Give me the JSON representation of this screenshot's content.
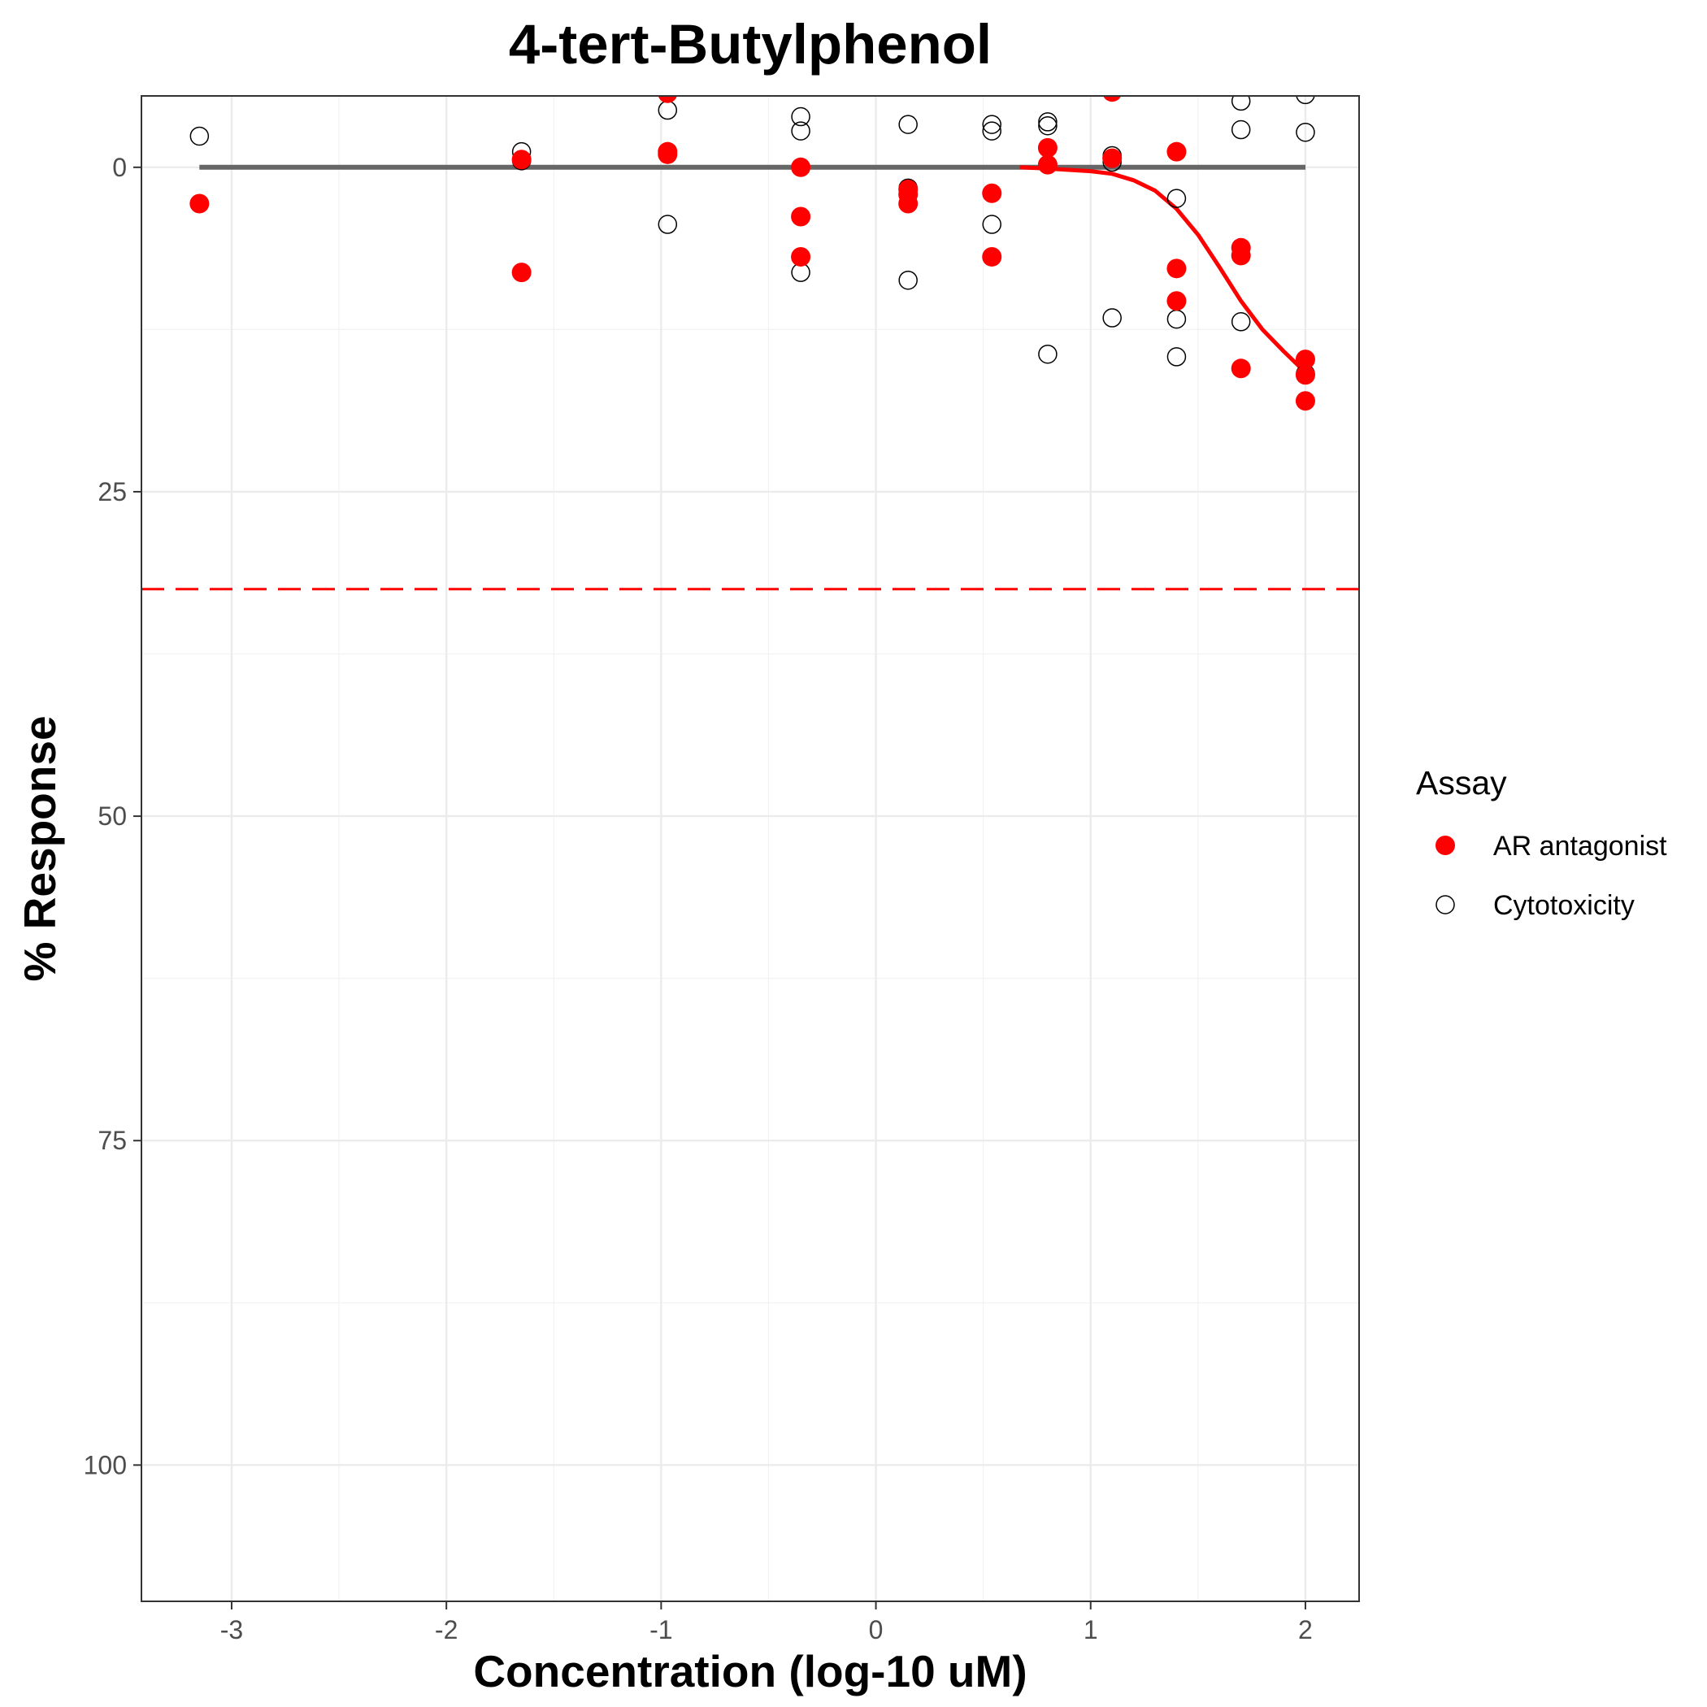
{
  "chart_data": {
    "type": "scatter",
    "title": "4-tert-Butylphenol",
    "xlabel": "Concentration (log-10 uM)",
    "ylabel": "% Response",
    "xlim": [
      -3.42,
      2.25
    ],
    "ylim": [
      110.5,
      -5.5
    ],
    "y_reversed": true,
    "x_ticks": [
      -3,
      -2,
      -1,
      0,
      1,
      2
    ],
    "x_tick_labels": [
      "-3",
      "-2",
      "-1",
      "0",
      "1",
      "2"
    ],
    "y_ticks": [
      0,
      25,
      50,
      75,
      100
    ],
    "y_tick_labels": [
      "0",
      "25",
      "50",
      "75",
      "100"
    ],
    "grid": true,
    "legend": {
      "title": "Assay",
      "position": "right"
    },
    "series": [
      {
        "name": "AR antagonist",
        "marker": "filled-circle",
        "color": "#ff0000",
        "points": [
          {
            "x": -3.15,
            "y": 2.8
          },
          {
            "x": -1.65,
            "y": 8.1
          },
          {
            "x": -1.65,
            "y": -0.6
          },
          {
            "x": -0.97,
            "y": -5.7
          },
          {
            "x": -0.97,
            "y": -1.2
          },
          {
            "x": -0.97,
            "y": -1.0
          },
          {
            "x": -0.35,
            "y": 0.0
          },
          {
            "x": -0.35,
            "y": 3.8
          },
          {
            "x": -0.35,
            "y": 6.9
          },
          {
            "x": 0.15,
            "y": 1.7
          },
          {
            "x": 0.15,
            "y": 2.1
          },
          {
            "x": 0.15,
            "y": 2.8
          },
          {
            "x": 0.54,
            "y": 2.0
          },
          {
            "x": 0.54,
            "y": 6.9
          },
          {
            "x": 0.8,
            "y": -1.5
          },
          {
            "x": 0.8,
            "y": -0.2
          },
          {
            "x": 1.1,
            "y": -5.8
          },
          {
            "x": 1.1,
            "y": -0.7
          },
          {
            "x": 1.4,
            "y": -1.2
          },
          {
            "x": 1.4,
            "y": 7.8
          },
          {
            "x": 1.4,
            "y": 10.3
          },
          {
            "x": 1.7,
            "y": 6.2
          },
          {
            "x": 1.7,
            "y": 6.8
          },
          {
            "x": 1.7,
            "y": 15.5
          },
          {
            "x": 2.0,
            "y": 14.8
          },
          {
            "x": 2.0,
            "y": 16.0
          },
          {
            "x": 2.0,
            "y": 18.0
          }
        ]
      },
      {
        "name": "Cytotoxicity",
        "marker": "open-circle",
        "color": "#000000",
        "points": [
          {
            "x": -3.15,
            "y": -2.4
          },
          {
            "x": -1.65,
            "y": -1.2
          },
          {
            "x": -1.65,
            "y": -0.5
          },
          {
            "x": -0.97,
            "y": -4.4
          },
          {
            "x": -0.97,
            "y": 4.4
          },
          {
            "x": -0.35,
            "y": -3.9
          },
          {
            "x": -0.35,
            "y": -2.8
          },
          {
            "x": -0.35,
            "y": 8.1
          },
          {
            "x": 0.15,
            "y": -3.3
          },
          {
            "x": 0.15,
            "y": 1.6
          },
          {
            "x": 0.15,
            "y": 8.7
          },
          {
            "x": 0.54,
            "y": -3.3
          },
          {
            "x": 0.54,
            "y": -2.8
          },
          {
            "x": 0.54,
            "y": 4.4
          },
          {
            "x": 0.8,
            "y": -3.5
          },
          {
            "x": 0.8,
            "y": -3.2
          },
          {
            "x": 0.8,
            "y": 14.4
          },
          {
            "x": 1.1,
            "y": -0.9
          },
          {
            "x": 1.1,
            "y": -0.4
          },
          {
            "x": 1.1,
            "y": 11.6
          },
          {
            "x": 1.4,
            "y": 2.4
          },
          {
            "x": 1.4,
            "y": 11.7
          },
          {
            "x": 1.4,
            "y": 14.6
          },
          {
            "x": 1.7,
            "y": -5.1
          },
          {
            "x": 1.7,
            "y": -2.9
          },
          {
            "x": 1.7,
            "y": 11.9
          },
          {
            "x": 2.0,
            "y": -5.6
          },
          {
            "x": 2.0,
            "y": -2.7
          },
          {
            "x": 2.0,
            "y": 15.9
          }
        ]
      }
    ],
    "lines": [
      {
        "kind": "baseline",
        "color": "#666666",
        "points": [
          {
            "x": -3.15,
            "y": 0
          },
          {
            "x": 2.0,
            "y": 0
          }
        ]
      },
      {
        "kind": "fit-curve",
        "color": "#ff0000",
        "points": [
          {
            "x": 0.67,
            "y": 0.0
          },
          {
            "x": 0.8,
            "y": 0.1
          },
          {
            "x": 0.9,
            "y": 0.2
          },
          {
            "x": 1.0,
            "y": 0.3
          },
          {
            "x": 1.1,
            "y": 0.5
          },
          {
            "x": 1.2,
            "y": 1.0
          },
          {
            "x": 1.3,
            "y": 1.8
          },
          {
            "x": 1.4,
            "y": 3.2
          },
          {
            "x": 1.5,
            "y": 5.2
          },
          {
            "x": 1.6,
            "y": 7.7
          },
          {
            "x": 1.7,
            "y": 10.3
          },
          {
            "x": 1.8,
            "y": 12.5
          },
          {
            "x": 1.9,
            "y": 14.2
          },
          {
            "x": 2.0,
            "y": 15.8
          }
        ]
      },
      {
        "kind": "threshold",
        "color": "#ff0000",
        "dashed": true,
        "y": 32.5
      }
    ]
  }
}
